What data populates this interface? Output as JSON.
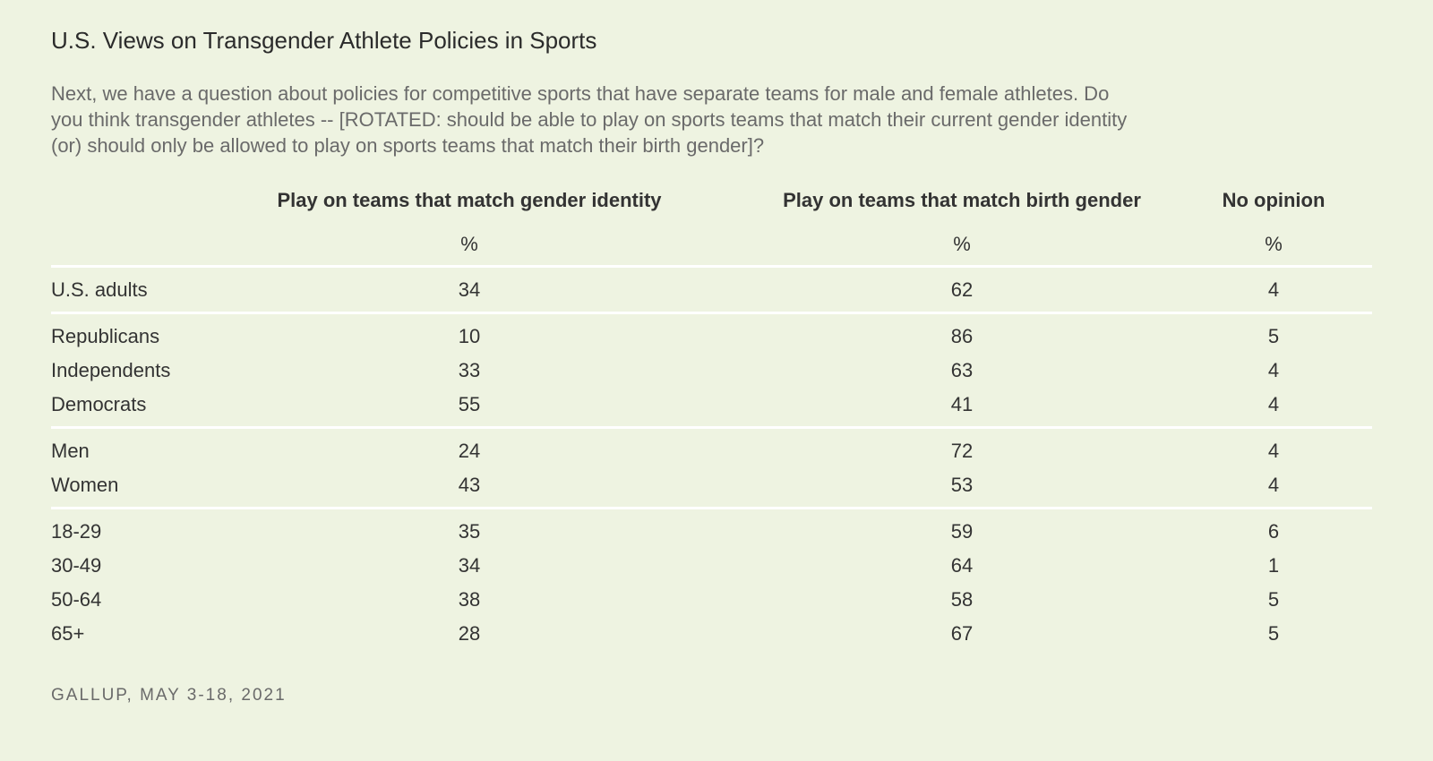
{
  "title": "U.S. Views on Transgender Athlete Policies in Sports",
  "question": "Next, we have a question about policies for competitive sports that have separate teams for male and female athletes. Do you think transgender athletes -- [ROTATED: should be able to play on sports teams that match their current gender identity (or) should only be allowed to play on sports teams that match their birth gender]?",
  "source": "GALLUP, MAY 3-18, 2021",
  "chart_data": {
    "type": "table",
    "columns": [
      {
        "label": "Play on teams that match gender identity",
        "unit": "%"
      },
      {
        "label": "Play on teams that match birth gender",
        "unit": "%"
      },
      {
        "label": "No opinion",
        "unit": "%"
      }
    ],
    "groups": [
      {
        "rows": [
          {
            "label": "U.S. adults",
            "values": [
              "34",
              "62",
              "4"
            ]
          }
        ]
      },
      {
        "rows": [
          {
            "label": "Republicans",
            "values": [
              "10",
              "86",
              "5"
            ]
          },
          {
            "label": "Independents",
            "values": [
              "33",
              "63",
              "4"
            ]
          },
          {
            "label": "Democrats",
            "values": [
              "55",
              "41",
              "4"
            ]
          }
        ]
      },
      {
        "rows": [
          {
            "label": "Men",
            "values": [
              "24",
              "72",
              "4"
            ]
          },
          {
            "label": "Women",
            "values": [
              "43",
              "53",
              "4"
            ]
          }
        ]
      },
      {
        "rows": [
          {
            "label": "18-29",
            "values": [
              "35",
              "59",
              "6"
            ]
          },
          {
            "label": "30-49",
            "values": [
              "34",
              "64",
              "1"
            ]
          },
          {
            "label": "50-64",
            "values": [
              "38",
              "58",
              "5"
            ]
          },
          {
            "label": "65+",
            "values": [
              "28",
              "67",
              "5"
            ]
          }
        ]
      }
    ]
  }
}
